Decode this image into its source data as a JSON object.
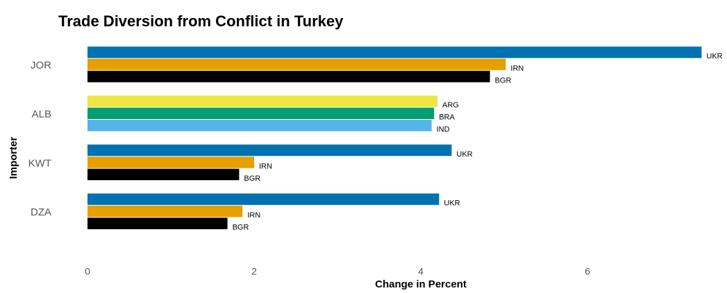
{
  "chart_data": {
    "type": "grouped-hbar",
    "title": "Trade Diversion from Conflict in Turkey",
    "xlabel": "Change in Percent",
    "ylabel": "Importer",
    "groups": [
      {
        "name": "JOR",
        "bars": [
          {
            "label": "UKR",
            "value": 7.37,
            "color": "#0072b2"
          },
          {
            "label": "IRN",
            "value": 5.02,
            "color": "#e69f00"
          },
          {
            "label": "BGR",
            "value": 4.83,
            "color": "#000000"
          }
        ]
      },
      {
        "name": "ALB",
        "bars": [
          {
            "label": "ARG",
            "value": 4.2,
            "color": "#f0e442"
          },
          {
            "label": "BRA",
            "value": 4.16,
            "color": "#009e73"
          },
          {
            "label": "IND",
            "value": 4.13,
            "color": "#56b4e9"
          }
        ]
      },
      {
        "name": "KWT",
        "bars": [
          {
            "label": "UKR",
            "value": 4.37,
            "color": "#0072b2"
          },
          {
            "label": "IRN",
            "value": 2.0,
            "color": "#e69f00"
          },
          {
            "label": "BGR",
            "value": 1.82,
            "color": "#000000"
          }
        ]
      },
      {
        "name": "DZA",
        "bars": [
          {
            "label": "UKR",
            "value": 4.22,
            "color": "#0072b2"
          },
          {
            "label": "IRN",
            "value": 1.86,
            "color": "#e69f00"
          },
          {
            "label": "BGR",
            "value": 1.68,
            "color": "#000000"
          }
        ]
      }
    ],
    "xlim": [
      0,
      7.6
    ],
    "xticks": [
      0,
      2,
      4,
      6
    ]
  }
}
